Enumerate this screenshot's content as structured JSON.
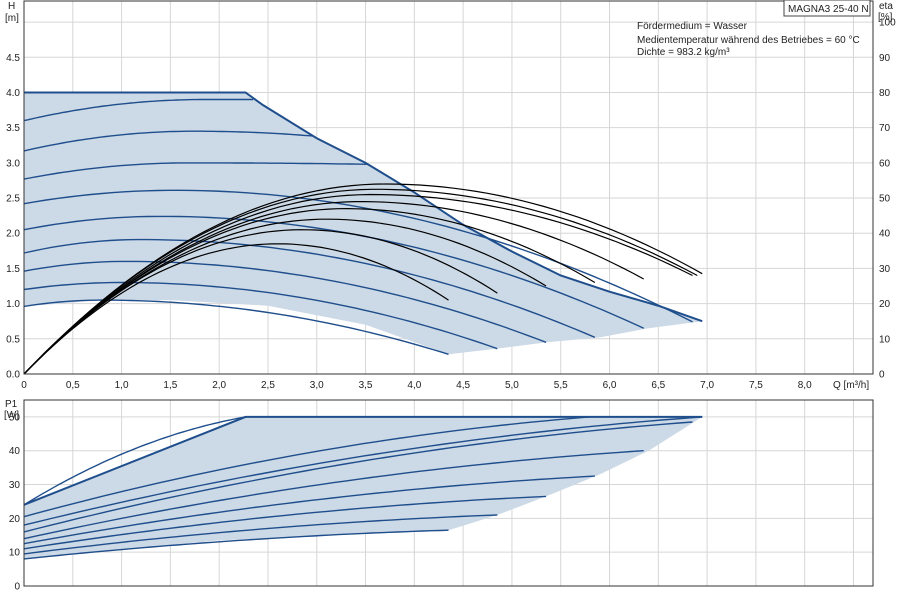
{
  "model_badge": "MAGNA3 25-40 N",
  "info": {
    "line1": "Fördermedium = Wasser",
    "line2": "Medientemperatur während des Betriebes = 60 °C",
    "line3": "Dichte = 983.2 kg/m³"
  },
  "colors": {
    "curve": "#1f4e8c",
    "fill": "#ccd9e6",
    "eta": "#000000",
    "grid": "#d6d6d6"
  },
  "chart_data": [
    {
      "type": "line",
      "ylabel_name": "H",
      "ylabel_unit": "[m]",
      "y2label_name": "eta",
      "y2label_unit": "[%]",
      "xlabel": "Q [m³/h]",
      "xlim": [
        0,
        8.7
      ],
      "ylim": [
        0,
        5.3
      ],
      "y2lim": [
        0,
        106
      ],
      "xticks": [
        0,
        0.5,
        1.0,
        1.5,
        2.0,
        2.5,
        3.0,
        3.5,
        4.0,
        4.5,
        5.0,
        5.5,
        6.0,
        6.5,
        7.0,
        7.5,
        8.0
      ],
      "xtick_labels": [
        "0",
        "0,5",
        "1,0",
        "1,5",
        "2,0",
        "2,5",
        "3,0",
        "3,5",
        "4,0",
        "4,5",
        "5,0",
        "5,5",
        "6,0",
        "6,5",
        "7,0",
        "7,5",
        "8,0"
      ],
      "yticks": [
        0,
        0.5,
        1.0,
        1.5,
        2.0,
        2.5,
        3.0,
        3.5,
        4.0,
        4.5
      ],
      "ytick_labels": [
        "0.0",
        "0.5",
        "1.0",
        "1.5",
        "2.0",
        "2.5",
        "3.0",
        "3.5",
        "4.0",
        "4.5"
      ],
      "y2ticks": [
        0,
        10,
        20,
        30,
        40,
        50,
        60,
        70,
        80,
        90,
        100
      ],
      "grid": true,
      "envelope": [
        [
          0,
          4.0
        ],
        [
          2.27,
          4.0
        ],
        [
          2.45,
          3.82
        ],
        [
          3.0,
          3.35
        ],
        [
          3.5,
          3.0
        ],
        [
          4.0,
          2.58
        ],
        [
          4.5,
          2.12
        ],
        [
          5.0,
          1.74
        ],
        [
          5.5,
          1.4
        ],
        [
          6.0,
          1.17
        ],
        [
          6.5,
          0.97
        ],
        [
          6.95,
          0.75
        ],
        [
          6.4,
          0.65
        ],
        [
          5.9,
          0.52
        ],
        [
          5.35,
          0.45
        ],
        [
          4.85,
          0.36
        ],
        [
          4.35,
          0.28
        ],
        [
          3.5,
          0.7
        ],
        [
          2.5,
          0.97
        ],
        [
          1.5,
          1.05
        ],
        [
          0.8,
          1.05
        ],
        [
          0,
          0.96
        ],
        [
          0,
          4.0
        ]
      ],
      "head_curves": [
        {
          "shutoff": 0.96,
          "peak_q": 0.8,
          "peak_h": 1.05,
          "end": [
            4.35,
            0.28
          ]
        },
        {
          "shutoff": 1.2,
          "peak_q": 1.0,
          "peak_h": 1.3,
          "end": [
            4.85,
            0.36
          ]
        },
        {
          "shutoff": 1.46,
          "peak_q": 1.05,
          "peak_h": 1.6,
          "end": [
            5.35,
            0.45
          ]
        },
        {
          "shutoff": 1.72,
          "peak_q": 1.2,
          "peak_h": 1.91,
          "end": [
            5.85,
            0.52
          ]
        },
        {
          "shutoff": 2.05,
          "peak_q": 1.4,
          "peak_h": 2.24,
          "end": [
            6.35,
            0.65
          ]
        },
        {
          "shutoff": 2.42,
          "peak_q": 1.55,
          "peak_h": 2.61,
          "end": [
            6.85,
            0.74
          ]
        },
        {
          "shutoff": 2.77,
          "peak_q": 1.7,
          "peak_h": 3.0,
          "end": [
            3.52,
            2.98
          ]
        },
        {
          "shutoff": 3.17,
          "peak_q": 1.75,
          "peak_h": 3.45,
          "end": [
            2.97,
            3.38
          ]
        },
        {
          "shutoff": 3.6,
          "peak_q": 1.85,
          "peak_h": 3.9,
          "end": [
            2.35,
            3.9
          ]
        }
      ],
      "eta_curves": [
        {
          "end": [
            4.35,
            21
          ],
          "peak_q": 2.6,
          "peak": 37
        },
        {
          "end": [
            4.85,
            23
          ],
          "peak_q": 2.85,
          "peak": 41
        },
        {
          "end": [
            5.35,
            25
          ],
          "peak_q": 3.1,
          "peak": 44
        },
        {
          "end": [
            5.85,
            26
          ],
          "peak_q": 3.3,
          "peak": 47
        },
        {
          "end": [
            6.35,
            27
          ],
          "peak_q": 3.45,
          "peak": 49
        },
        {
          "end": [
            6.85,
            28
          ],
          "peak_q": 3.55,
          "peak": 51
        },
        {
          "end": [
            6.9,
            28
          ],
          "peak_q": 3.6,
          "peak": 52.5
        },
        {
          "end": [
            6.95,
            28.5
          ],
          "peak_q": 3.7,
          "peak": 54
        }
      ]
    },
    {
      "type": "line",
      "ylabel_name": "P1",
      "ylabel_unit": "[W]",
      "xlim": [
        0,
        8.7
      ],
      "ylim": [
        0,
        55
      ],
      "yticks": [
        0,
        10,
        20,
        30,
        40,
        50
      ],
      "ytick_labels": [
        "0",
        "10",
        "20",
        "30",
        "40",
        "50"
      ],
      "grid": true,
      "envelope": [
        [
          0,
          24
        ],
        [
          2.27,
          50
        ],
        [
          6.95,
          50
        ],
        [
          6.4,
          40
        ],
        [
          5.9,
          33
        ],
        [
          5.35,
          26.5
        ],
        [
          4.85,
          21
        ],
        [
          4.35,
          16.5
        ],
        [
          2.0,
          13.5
        ],
        [
          0,
          8
        ],
        [
          0,
          24
        ]
      ],
      "power_curves": [
        {
          "start": 8,
          "end": [
            4.35,
            16.5
          ]
        },
        {
          "start": 9.5,
          "end": [
            4.85,
            21
          ]
        },
        {
          "start": 11,
          "end": [
            5.35,
            26.5
          ]
        },
        {
          "start": 12.5,
          "end": [
            5.85,
            32.5
          ]
        },
        {
          "start": 14,
          "end": [
            6.35,
            40
          ]
        },
        {
          "start": 16,
          "end": [
            6.85,
            48.5
          ]
        },
        {
          "start": 18,
          "end": [
            6.95,
            50
          ]
        },
        {
          "start": 20.5,
          "end": [
            5.8,
            50
          ]
        },
        {
          "start": 24,
          "end": [
            2.27,
            50
          ]
        }
      ]
    }
  ]
}
